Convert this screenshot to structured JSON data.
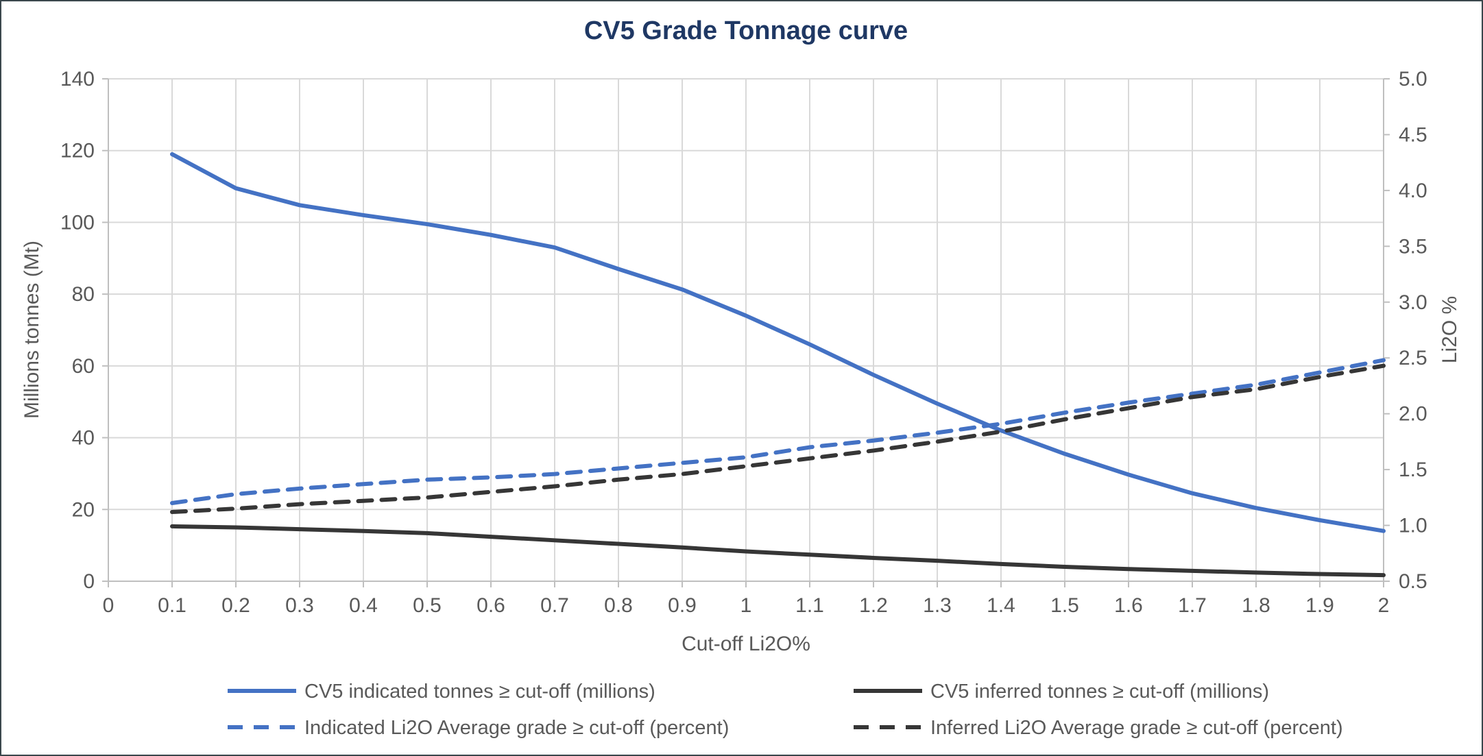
{
  "chart_data": {
    "type": "line",
    "title": "CV5 Grade Tonnage curve",
    "xlabel": "Cut-off Li2O%",
    "ylabel_left": "Millions tonnes (Mt)",
    "ylabel_right": "Li2O %",
    "xlim": [
      0,
      2
    ],
    "ylim_left": [
      0,
      140
    ],
    "ylim_right": [
      0.5,
      5.0
    ],
    "grid": true,
    "legend_position": "bottom",
    "x_ticks": [
      0,
      0.1,
      0.2,
      0.3,
      0.4,
      0.5,
      0.6,
      0.7,
      0.8,
      0.9,
      1,
      1.1,
      1.2,
      1.3,
      1.4,
      1.5,
      1.6,
      1.7,
      1.8,
      1.9,
      2
    ],
    "y_ticks_left": [
      0,
      20,
      40,
      60,
      80,
      100,
      120,
      140
    ],
    "y_ticks_right": [
      0.5,
      1.0,
      1.5,
      2.0,
      2.5,
      3.0,
      3.5,
      4.0,
      4.5,
      5.0
    ],
    "x": [
      0.1,
      0.2,
      0.3,
      0.4,
      0.5,
      0.6,
      0.7,
      0.8,
      0.9,
      1.0,
      1.1,
      1.2,
      1.3,
      1.4,
      1.5,
      1.6,
      1.7,
      1.8,
      1.9,
      2.0
    ],
    "series": [
      {
        "name": "CV5 indicated tonnes ≥ cut-off (millions)",
        "axis": "left",
        "style": "solid",
        "color": "#4472C4",
        "values": [
          119,
          109.5,
          104.8,
          102,
          99.5,
          96.5,
          93,
          87,
          81.3,
          74,
          66,
          57.5,
          49.5,
          42,
          35.5,
          29.7,
          24.5,
          20.4,
          17,
          14
        ]
      },
      {
        "name": "CV5 inferred tonnes ≥ cut-off (millions)",
        "axis": "left",
        "style": "solid",
        "color": "#363636",
        "values": [
          15.3,
          15,
          14.5,
          14,
          13.4,
          12.4,
          11.4,
          10.4,
          9.4,
          8.3,
          7.4,
          6.5,
          5.7,
          4.8,
          4,
          3.4,
          2.9,
          2.4,
          2,
          1.7
        ]
      },
      {
        "name": "Indicated Li2O Average grade ≥ cut-off (percent)",
        "axis": "right",
        "style": "dashed",
        "color": "#4472C4",
        "values": [
          1.2,
          1.28,
          1.33,
          1.37,
          1.41,
          1.43,
          1.46,
          1.51,
          1.56,
          1.61,
          1.7,
          1.76,
          1.83,
          1.91,
          2.01,
          2.1,
          2.18,
          2.26,
          2.37,
          2.48
        ]
      },
      {
        "name": "Inferred Li2O Average grade ≥ cut-off (percent)",
        "axis": "right",
        "style": "dashed",
        "color": "#363636",
        "values": [
          1.12,
          1.15,
          1.19,
          1.22,
          1.25,
          1.3,
          1.35,
          1.41,
          1.46,
          1.53,
          1.6,
          1.67,
          1.75,
          1.84,
          1.95,
          2.05,
          2.15,
          2.22,
          2.33,
          2.43
        ]
      }
    ],
    "colors": {
      "title": "#1f3864",
      "tick_label": "#595959",
      "gridline": "#d9d9d9",
      "axis_line": "#bfbfbf",
      "legend_text": "#595959"
    }
  }
}
